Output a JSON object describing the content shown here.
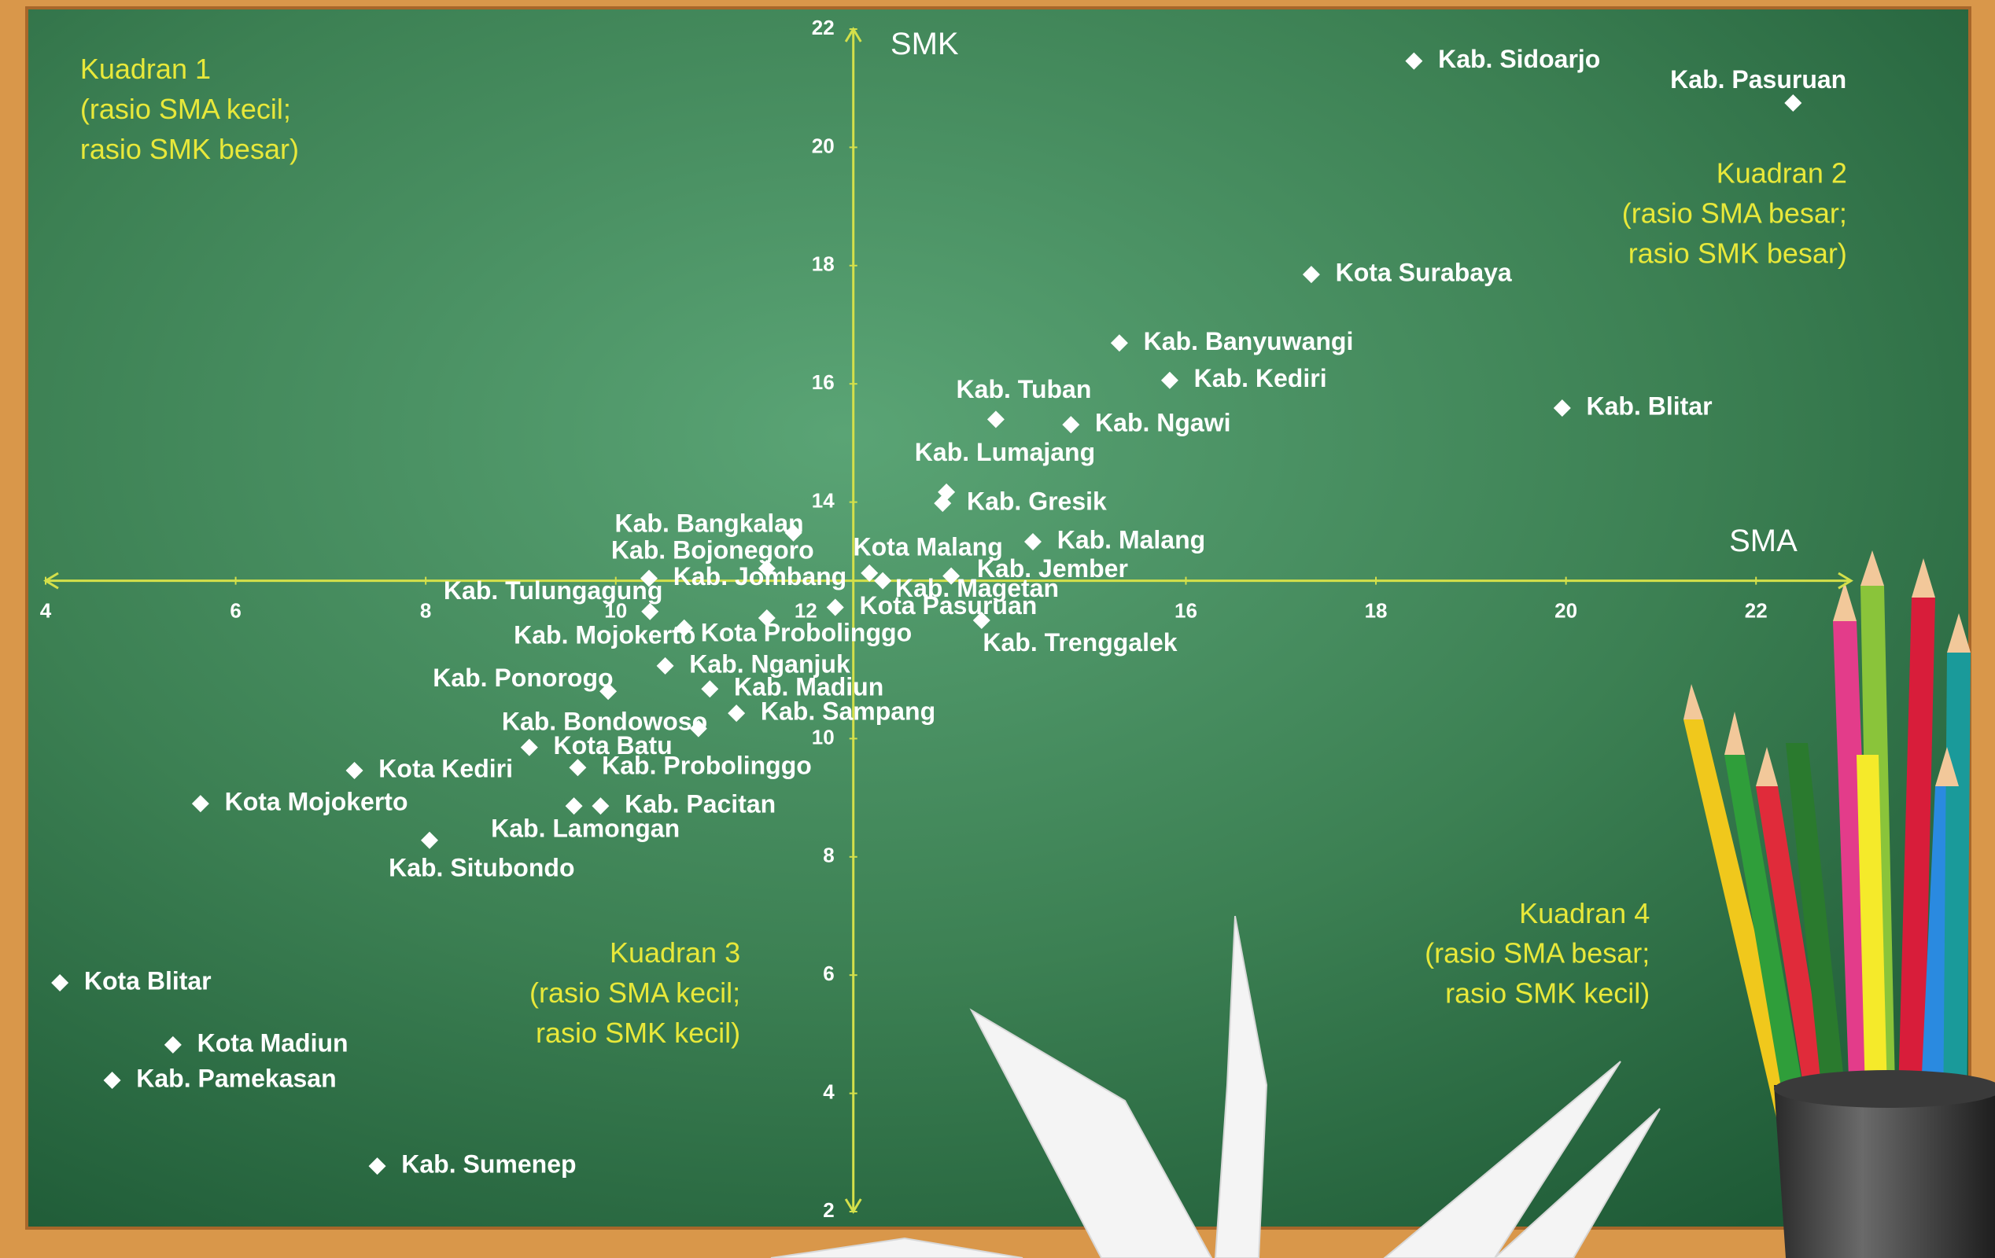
{
  "chart_data": {
    "type": "scatter",
    "x_label": "SMA",
    "y_label": "SMK",
    "xlim": [
      4,
      23
    ],
    "ylim": [
      2,
      22
    ],
    "xticks": [
      4,
      6,
      8,
      10,
      12,
      16,
      18,
      20,
      22
    ],
    "yticks": [
      2,
      4,
      6,
      8,
      10,
      14,
      16,
      18,
      20,
      22
    ],
    "axis_cross": {
      "x": 12.5,
      "y": 12.67
    },
    "axis_color": "#d4e04a",
    "color": "#ffffff",
    "annotations": [
      [
        "Kuadran 1",
        "(rasio SMA kecil;",
        "rasio SMK besar)"
      ],
      [
        "Kuadran 2",
        "(rasio SMA besar;",
        "rasio SMK besar)"
      ],
      [
        "Kuadran 3",
        "(rasio SMA kecil;",
        "rasio SMK kecil)"
      ],
      [
        "Kuadran 4",
        "(rasio SMA besar;",
        "rasio SMK kecil)"
      ]
    ],
    "labels": [
      "Kab. Sidoarjo",
      "Kab. Pasuruan",
      "Kota Surabaya",
      "Kab. Banyuwangi",
      "Kab. Kediri",
      "Kab. Blitar",
      "Kab. Tuban",
      "Kab. Ngawi",
      "Kab. Lumajang",
      "Kab. Gresik",
      "Kab. Malang",
      "Kab. Bangkalan",
      "Kab. Bojonegoro",
      "Kota Malang",
      "Kab. Jember",
      "Kab. Jombang",
      "Kab. Magetan",
      "Kab. Tulungagung",
      "Kota Pasuruan",
      "Kab. Trenggalek",
      "Kab. Mojokerto",
      "Kota Probolinggo",
      "Kab. Nganjuk",
      "Kab. Ponorogo",
      "Kab. Madiun",
      "Kab. Sampang",
      "Kab. Bondowoso",
      "Kota Batu",
      "Kota Kediri",
      "Kab. Probolinggo",
      "Kota Mojokerto",
      "Kab. Lamongan",
      "Kab. Pacitan",
      "Kab. Situbondo",
      "Kota Blitar",
      "Kota Madiun",
      "Kab. Pamekasan",
      "Kab. Sumenep"
    ],
    "x": [
      18.4,
      22.39,
      17.32,
      15.3,
      15.83,
      19.96,
      14.0,
      14.79,
      13.48,
      13.44,
      14.39,
      11.87,
      11.59,
      12.67,
      12.81,
      10.35,
      13.53,
      10.36,
      12.31,
      13.85,
      10.72,
      11.59,
      10.52,
      9.92,
      10.99,
      11.27,
      10.87,
      9.09,
      7.25,
      9.6,
      5.63,
      9.56,
      9.84,
      8.04,
      4.15,
      5.34,
      4.7,
      7.49
    ],
    "y": [
      21.46,
      20.75,
      17.85,
      16.69,
      16.06,
      15.59,
      15.4,
      15.31,
      14.17,
      13.98,
      13.33,
      13.48,
      12.88,
      12.8,
      12.67,
      12.71,
      12.75,
      12.15,
      12.22,
      12.0,
      11.87,
      12.04,
      11.23,
      10.8,
      10.84,
      10.43,
      10.17,
      9.85,
      9.46,
      9.51,
      8.9,
      8.86,
      8.86,
      8.28,
      5.87,
      4.82,
      4.22,
      2.77
    ]
  }
}
